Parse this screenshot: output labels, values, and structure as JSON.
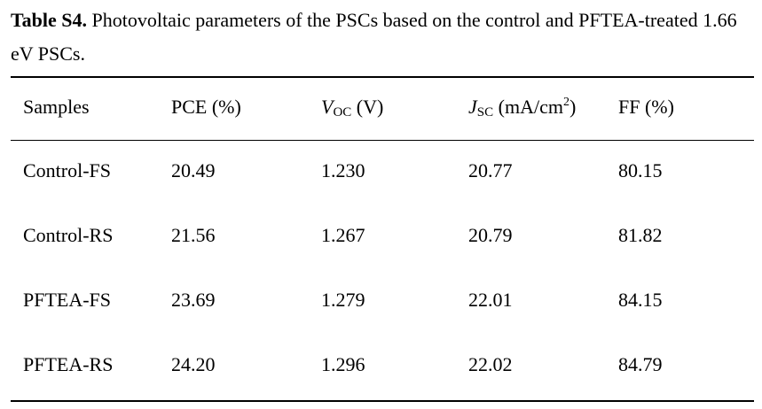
{
  "caption": {
    "label": "Table S4.",
    "text": " Photovoltaic parameters of the PSCs based on the control and PFTEA-treated 1.66 eV PSCs."
  },
  "table": {
    "headers": {
      "samples": "Samples",
      "pce": "PCE (%)",
      "voc": {
        "sym": "V",
        "sub": "OC",
        "unit": " (V)"
      },
      "jsc": {
        "sym": "J",
        "sub": "SC",
        "unit_pre": " (mA/cm",
        "sup": "2",
        "unit_post": ")"
      },
      "ff": "FF (%)"
    },
    "rows": [
      {
        "sample": "Control-FS",
        "pce": "20.49",
        "voc": "1.230",
        "jsc": "20.77",
        "ff": "80.15"
      },
      {
        "sample": "Control-RS",
        "pce": "21.56",
        "voc": "1.267",
        "jsc": "20.79",
        "ff": "81.82"
      },
      {
        "sample": "PFTEA-FS",
        "pce": "23.69",
        "voc": "1.279",
        "jsc": "22.01",
        "ff": "84.15"
      },
      {
        "sample": "PFTEA-RS",
        "pce": "24.20",
        "voc": "1.296",
        "jsc": "22.02",
        "ff": "84.79"
      }
    ]
  }
}
